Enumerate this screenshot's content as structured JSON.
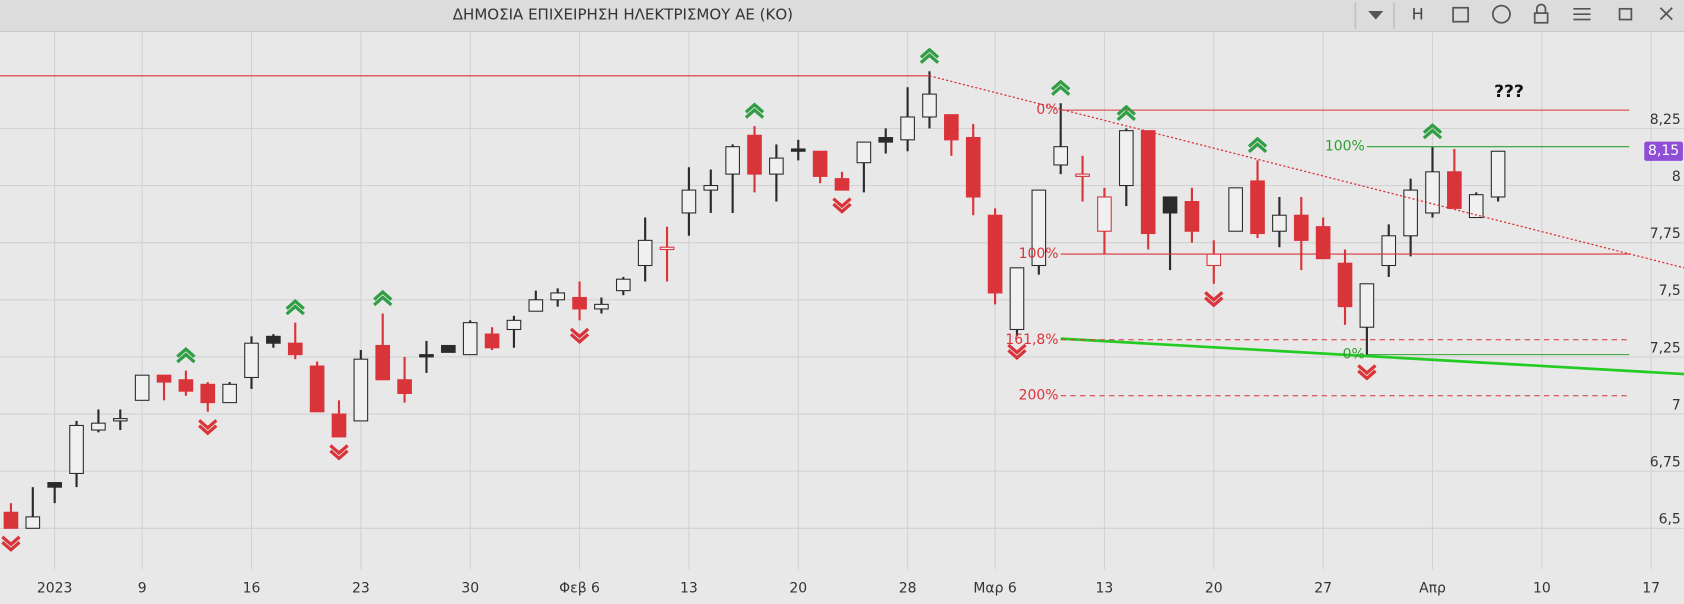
{
  "window": {
    "title": "ΔΗΜΟΣΙΑ ΕΠΙΧΕΙΡΗΣΗ ΗΛΕΚΤΡΙΣΜΟΥ ΑΕ (ΚΟ)",
    "toolbar_letter": "H"
  },
  "chart_data": {
    "type": "candlestick",
    "categories": [
      null,
      null,
      "2023",
      null,
      null,
      null,
      "9",
      null,
      null,
      null,
      null,
      "16",
      null,
      null,
      null,
      null,
      "23",
      null,
      null,
      null,
      null,
      "30",
      null,
      null,
      null,
      null,
      "Φεβ 6",
      null,
      null,
      null,
      null,
      "13",
      null,
      null,
      null,
      null,
      "20",
      null,
      null,
      null,
      null,
      "28",
      null,
      null,
      null,
      "Μαρ 6",
      null,
      null,
      null,
      null,
      "13",
      null,
      null,
      null,
      null,
      "20",
      null,
      null,
      null,
      null,
      "27",
      null,
      null,
      null,
      null,
      "Απρ",
      null,
      null,
      null,
      null,
      "10",
      null,
      null,
      null,
      null,
      "17",
      null
    ],
    "open": [
      6.57,
      6.5,
      6.7,
      6.74,
      6.93,
      6.97,
      7.06,
      7.17,
      7.15,
      7.13,
      7.05,
      7.16,
      7.34,
      7.31,
      7.21,
      7.0,
      6.97,
      7.3,
      7.15,
      7.26,
      7.3,
      7.26,
      7.35,
      7.37,
      7.45,
      7.5,
      7.51,
      7.46,
      7.54,
      7.65,
      7.72,
      7.88,
      7.98,
      8.05,
      8.22,
      8.05,
      8.16,
      8.15,
      8.03,
      8.1,
      8.21,
      8.2,
      8.3,
      8.31,
      8.21,
      7.87,
      7.37,
      7.65,
      8.09,
      8.04,
      7.8,
      8.0,
      8.24,
      7.95,
      7.93,
      7.65,
      7.8,
      8.02,
      7.8,
      7.87,
      7.82,
      7.66,
      7.38,
      7.65,
      7.78,
      7.88,
      8.06,
      7.86,
      7.95,
      null,
      null,
      null,
      null,
      null,
      null,
      null,
      null
    ],
    "high": [
      6.61,
      6.68,
      6.7,
      6.97,
      7.02,
      7.02,
      7.17,
      7.17,
      7.19,
      7.14,
      7.14,
      7.34,
      7.35,
      7.4,
      7.23,
      7.06,
      7.28,
      7.44,
      7.25,
      7.32,
      7.3,
      7.41,
      7.38,
      7.43,
      7.54,
      7.55,
      7.58,
      7.51,
      7.6,
      7.86,
      7.82,
      8.08,
      8.07,
      8.18,
      8.26,
      8.18,
      8.2,
      8.15,
      8.06,
      8.19,
      8.25,
      8.43,
      8.5,
      8.31,
      8.27,
      7.9,
      7.64,
      7.98,
      8.36,
      8.13,
      7.99,
      8.25,
      8.24,
      7.95,
      7.99,
      7.76,
      7.99,
      8.11,
      7.95,
      7.95,
      7.86,
      7.72,
      7.57,
      7.83,
      8.03,
      8.17,
      8.16,
      7.97,
      8.15,
      null,
      null,
      null,
      null,
      null,
      null,
      null,
      null
    ],
    "low": [
      6.5,
      6.5,
      6.61,
      6.68,
      6.92,
      6.93,
      7.06,
      7.06,
      7.08,
      7.01,
      7.05,
      7.11,
      7.29,
      7.24,
      7.01,
      6.9,
      6.97,
      7.15,
      7.05,
      7.18,
      7.27,
      7.26,
      7.28,
      7.29,
      7.45,
      7.47,
      7.41,
      7.44,
      7.52,
      7.58,
      7.58,
      7.78,
      7.88,
      7.88,
      7.97,
      7.93,
      8.11,
      8.01,
      7.98,
      7.97,
      8.14,
      8.15,
      8.25,
      8.13,
      7.87,
      7.48,
      7.34,
      7.61,
      8.05,
      7.93,
      7.7,
      7.91,
      7.72,
      7.63,
      7.75,
      7.57,
      7.8,
      7.77,
      7.73,
      7.63,
      7.68,
      7.39,
      7.25,
      7.6,
      7.69,
      7.86,
      7.9,
      7.86,
      7.93,
      null,
      null,
      null,
      null,
      null,
      null,
      null,
      null
    ],
    "close": [
      6.5,
      6.55,
      6.68,
      6.95,
      6.96,
      6.98,
      7.17,
      7.14,
      7.1,
      7.05,
      7.13,
      7.31,
      7.31,
      7.26,
      7.01,
      6.9,
      7.24,
      7.15,
      7.09,
      7.25,
      7.27,
      7.4,
      7.29,
      7.41,
      7.5,
      7.53,
      7.46,
      7.48,
      7.59,
      7.76,
      7.73,
      7.98,
      8.0,
      8.17,
      8.05,
      8.12,
      8.15,
      8.04,
      7.98,
      8.19,
      8.19,
      8.3,
      8.4,
      8.2,
      7.95,
      7.53,
      7.64,
      7.98,
      8.17,
      8.05,
      7.95,
      8.24,
      7.79,
      7.88,
      7.8,
      7.7,
      7.99,
      7.79,
      7.87,
      7.76,
      7.68,
      7.47,
      7.57,
      7.78,
      7.98,
      8.06,
      7.9,
      7.96,
      8.15,
      null,
      null,
      null,
      null,
      null,
      null,
      null,
      null
    ],
    "up_color": "#2b2b2b",
    "down_color": "#d9343a",
    "hollow_fill": "#f0f0f0",
    "ylim": [
      6.32,
      8.67
    ],
    "yticks": [
      {
        "value": 6.5,
        "label": "6,5"
      },
      {
        "value": 6.75,
        "label": "6,75"
      },
      7,
      {
        "value": 7.25,
        "label": "7,25"
      },
      {
        "value": 7.5,
        "label": "7,5"
      },
      {
        "value": 7.75,
        "label": "7,75"
      },
      8,
      {
        "value": 8.25,
        "label": "8,25"
      }
    ],
    "grid": true,
    "last_price": {
      "value": 8.15,
      "label": "8,15",
      "color": "#8e4fd6"
    },
    "annotation": {
      "text": "???",
      "x": 68.5,
      "y": 8.41
    },
    "up_markers": [
      8,
      13,
      17,
      34,
      42,
      48,
      51,
      57,
      65
    ],
    "down_markers": [
      0,
      9,
      15,
      26,
      38,
      46,
      55,
      62
    ],
    "marker_up_color": "#2f9e44",
    "marker_down_color": "#d9343a",
    "lines": [
      {
        "x": [
          -0.5,
          42
        ],
        "y": [
          8.48,
          8.48
        ],
        "color": "#d9343a",
        "width": 1
      },
      {
        "x": [
          42,
          76.5
        ],
        "y": [
          8.48,
          7.64
        ],
        "color": "#d9343a",
        "width": 1.2,
        "dotted": true
      },
      {
        "x": [
          48,
          76.5
        ],
        "y": [
          7.33,
          7.175
        ],
        "color": "#22cc22",
        "width": 2.5
      }
    ],
    "fibs": [
      {
        "color": "#d9343a",
        "x": [
          48,
          74
        ],
        "levels": [
          {
            "label": "0%",
            "value": 8.33
          },
          {
            "label": "100%",
            "value": 7.7
          },
          {
            "label": "161,8%",
            "value": 7.325,
            "dashed": true
          },
          {
            "label": "200%",
            "value": 7.08,
            "dashed": true
          }
        ]
      },
      {
        "color": "#2ea02e",
        "x": [
          62,
          74
        ],
        "levels": [
          {
            "label": "100%",
            "value": 8.17
          },
          {
            "label": "0%",
            "value": 7.26
          }
        ]
      }
    ]
  }
}
